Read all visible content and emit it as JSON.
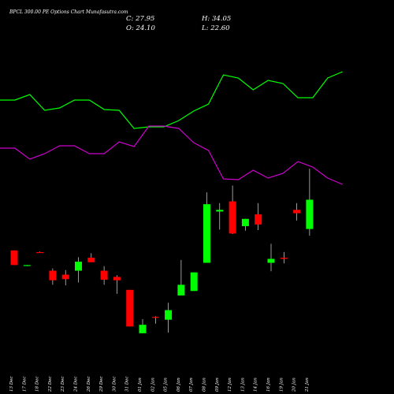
{
  "header": {
    "title": "BPCL 300.00 PE Options Chart Munafasutra.com",
    "close": "C: 27.95",
    "high": "H: 34.05",
    "open": "O: 24.10",
    "low": "L: 22.60"
  },
  "chart_data": {
    "type": "candlestick",
    "title": "BPCL 300.00 PE Options Chart Munafasutra.com",
    "categories": [
      "13 Dec",
      "17 Dec",
      "18 Dec",
      "22 Dec",
      "23 Dec",
      "24 Dec",
      "26 Dec",
      "29 Dec",
      "30 Dec",
      "31 Dec",
      "01 Jan",
      "02 Jan",
      "05 Jan",
      "06 Jan",
      "07 Jan",
      "08 Jan",
      "09 Jan",
      "12 Jan",
      "13 Jan",
      "14 Jan",
      "16 Jan",
      "19 Jan",
      "20 Jan",
      "21 Jan"
    ],
    "candles": [
      {
        "o": 11.5,
        "h": 11.5,
        "l": 8.9,
        "c": 8.9,
        "dir": "down"
      },
      {
        "o": 8.9,
        "h": 8.9,
        "l": 8.7,
        "c": 8.9,
        "dir": "up"
      },
      {
        "o": 11.2,
        "h": 11.3,
        "l": 11.1,
        "c": 11.1,
        "dir": "down"
      },
      {
        "o": 7.9,
        "h": 8.3,
        "l": 5.4,
        "c": 6.2,
        "dir": "down"
      },
      {
        "o": 7.2,
        "h": 8.0,
        "l": 5.3,
        "c": 6.4,
        "dir": "down"
      },
      {
        "o": 7.9,
        "h": 10.3,
        "l": 5.8,
        "c": 9.5,
        "dir": "up"
      },
      {
        "o": 10.2,
        "h": 11.0,
        "l": 9.4,
        "c": 9.4,
        "dir": "down"
      },
      {
        "o": 7.9,
        "h": 8.7,
        "l": 5.4,
        "c": 6.3,
        "dir": "down"
      },
      {
        "o": 6.8,
        "h": 7.1,
        "l": 3.8,
        "c": 6.2,
        "dir": "down"
      },
      {
        "o": 4.5,
        "h": 4.5,
        "l": -2.0,
        "c": -2.0,
        "dir": "down"
      },
      {
        "o": -3.2,
        "h": -0.7,
        "l": -3.2,
        "c": -1.7,
        "dir": "up"
      },
      {
        "o": -0.3,
        "h": -0.2,
        "l": -1.5,
        "c": -0.4,
        "dir": "down"
      },
      {
        "o": -0.8,
        "h": 2.2,
        "l": -3.1,
        "c": 0.9,
        "dir": "up"
      },
      {
        "o": 3.5,
        "h": 9.8,
        "l": 3.5,
        "c": 5.4,
        "dir": "up"
      },
      {
        "o": 4.3,
        "h": 7.6,
        "l": 4.3,
        "c": 7.6,
        "dir": "up"
      },
      {
        "o": 9.3,
        "h": 21.8,
        "l": 9.3,
        "c": 19.7,
        "dir": "up"
      },
      {
        "o": 18.4,
        "h": 19.9,
        "l": 15.2,
        "c": 18.7,
        "dir": "up"
      },
      {
        "o": 20.2,
        "h": 23.0,
        "l": 14.4,
        "c": 14.5,
        "dir": "down"
      },
      {
        "o": 15.8,
        "h": 17.1,
        "l": 15.0,
        "c": 17.1,
        "dir": "up"
      },
      {
        "o": 17.9,
        "h": 19.9,
        "l": 15.1,
        "c": 16.1,
        "dir": "down"
      },
      {
        "o": 9.3,
        "h": 12.7,
        "l": 7.8,
        "c": 10.0,
        "dir": "up"
      },
      {
        "o": 10.2,
        "h": 11.2,
        "l": 9.2,
        "c": 10.0,
        "dir": "down"
      },
      {
        "o": 18.7,
        "h": 19.9,
        "l": 16.8,
        "c": 18.1,
        "dir": "down"
      },
      {
        "o": 15.3,
        "h": 26.0,
        "l": 14.1,
        "c": 20.5,
        "dir": "up"
      }
    ],
    "upper_line": [
      127,
      127,
      120,
      140,
      137,
      127,
      127,
      139,
      140,
      163,
      161,
      161,
      153,
      141,
      132,
      95,
      99,
      114,
      102,
      106,
      124,
      124,
      99,
      91
    ],
    "lower_line": [
      188,
      188,
      202,
      195,
      185,
      185,
      195,
      195,
      180,
      186,
      160,
      160,
      163,
      181,
      191,
      227,
      228,
      216,
      226,
      220,
      205,
      212,
      226,
      234
    ],
    "colors": {
      "background": "#000000",
      "up": "#00ff00",
      "down": "#ff0000",
      "upper_line": "#00ff00",
      "lower_line": "#cc00cc",
      "axis_text": "#ffffff"
    }
  }
}
